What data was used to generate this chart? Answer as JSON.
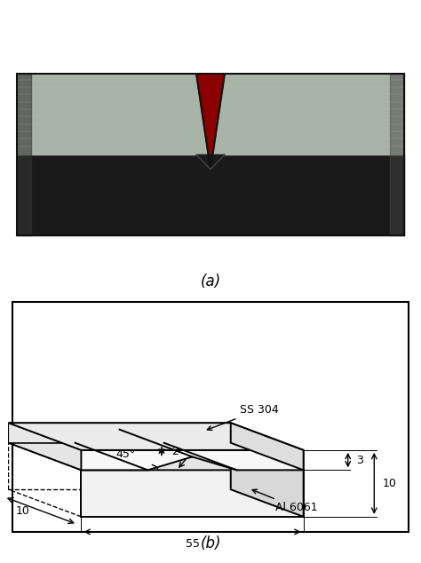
{
  "label_a": "(a)",
  "label_b": "(b)",
  "background_color": "#ffffff",
  "photo_bg": "#8B0000",
  "dim_labels": {
    "angle": "45°",
    "notch_depth": "2",
    "ss_thickness": "3",
    "total_thickness": "10",
    "width": "10",
    "length": "55",
    "ss_label": "SS 304",
    "al_label": "Al 6061"
  }
}
